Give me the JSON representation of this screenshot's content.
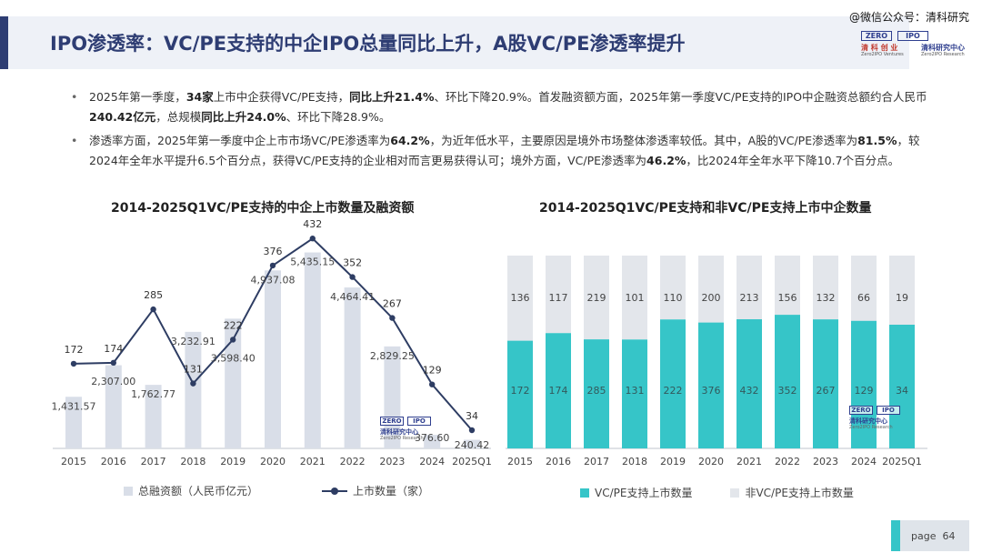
{
  "header": {
    "title": "IPO渗透率：VC/PE支持的中企IPO总量同比上升，A股VC/PE渗透率提升",
    "watermark": "@微信公众号：清科研究"
  },
  "logo": {
    "box_left": "ZERO",
    "box_right": "IPO",
    "name_left": "清 科 创 业",
    "name_right": "清科研究中心",
    "sub_left": "Zero2IPO Ventures",
    "sub_right": "Zero2IPO Research"
  },
  "bullets": [
    {
      "segments": [
        {
          "text": "2025年第一季度，",
          "bold": false
        },
        {
          "text": "34家",
          "bold": true
        },
        {
          "text": "上市中企获得VC/PE支持，",
          "bold": false
        },
        {
          "text": "同比上升21.4%",
          "bold": true
        },
        {
          "text": "、环比下降20.9%。首发融资额方面，2025年第一季度VC/PE支持的IPO中企融资总额约合人民币",
          "bold": false
        },
        {
          "text": "240.42亿元",
          "bold": true
        },
        {
          "text": "，总规模",
          "bold": false
        },
        {
          "text": "同比上升24.0%",
          "bold": true
        },
        {
          "text": "、环比下降28.9%。",
          "bold": false
        }
      ]
    },
    {
      "segments": [
        {
          "text": "渗透率方面，2025年第一季度中企上市市场VC/PE渗透率为",
          "bold": false
        },
        {
          "text": "64.2%",
          "bold": true
        },
        {
          "text": "，为近年低水平，主要原因是境外市场整体渗透率较低。其中，A股的VC/PE渗透率为",
          "bold": false
        },
        {
          "text": "81.5%",
          "bold": true
        },
        {
          "text": "，较2024年全年水平提升6.5个百分点，获得VC/PE支持的企业相对而言更易获得认可；境外方面，VC/PE渗透率为",
          "bold": false
        },
        {
          "text": "46.2%",
          "bold": true
        },
        {
          "text": "，比2024年全年水平下降10.7个百分点。",
          "bold": false
        }
      ]
    }
  ],
  "colors": {
    "navy": "#2e3d73",
    "teal": "#36c5c8",
    "grey_bar": "#d9dee8",
    "line": "#2e3d63"
  },
  "chart_data": [
    {
      "type": "bar",
      "title": "2014-2025Q1VC/PE支持的中企上市数量及融资额",
      "categories": [
        "2015",
        "2016",
        "2017",
        "2018",
        "2019",
        "2020",
        "2021",
        "2022",
        "2023",
        "2024",
        "2025Q1"
      ],
      "series": [
        {
          "name": "总融资额（人民币亿元）",
          "kind": "bar",
          "values": [
            1431.57,
            2307.0,
            1762.77,
            3232.91,
            3598.4,
            4937.08,
            5435.15,
            4464.41,
            2829.25,
            376.6,
            240.42
          ],
          "labels": [
            "1,431.57",
            "2,307.00",
            "1,762.77",
            "3,232.91",
            "3,598.40",
            "4,937.08",
            "5,435.15",
            "4,464.41",
            "2,829.25",
            "376.60",
            "240.42"
          ]
        },
        {
          "name": "上市数量（家）",
          "kind": "line",
          "values": [
            172,
            174,
            285,
            131,
            222,
            376,
            432,
            352,
            267,
            129,
            34
          ]
        }
      ],
      "grid": false
    },
    {
      "type": "bar",
      "stacked": true,
      "title": "2014-2025Q1VC/PE支持和非VC/PE支持上市中企数量",
      "categories": [
        "2015",
        "2016",
        "2017",
        "2018",
        "2019",
        "2020",
        "2021",
        "2022",
        "2023",
        "2024",
        "2025Q1"
      ],
      "series": [
        {
          "name": "VC/PE支持上市数量",
          "values": [
            172,
            174,
            285,
            131,
            222,
            376,
            432,
            352,
            267,
            129,
            34
          ]
        },
        {
          "name": "非VC/PE支持上市数量",
          "values": [
            136,
            117,
            219,
            101,
            110,
            200,
            213,
            156,
            132,
            66,
            19
          ]
        }
      ],
      "grid": false
    }
  ],
  "page": {
    "label": "page",
    "number": "64"
  }
}
